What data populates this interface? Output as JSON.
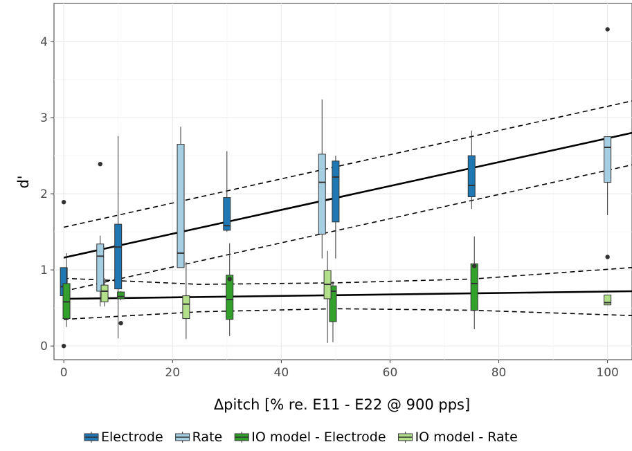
{
  "chart_data": {
    "type": "box",
    "xlabel": "Δpitch [% re. E11 - E22 @ 900 pps]",
    "ylabel": "d'",
    "xlim": [
      -1.8,
      104.5
    ],
    "ylim": [
      -0.18,
      4.5
    ],
    "xticks": [
      0,
      20,
      40,
      60,
      80,
      100
    ],
    "yticks": [
      0,
      1,
      2,
      3,
      4
    ],
    "grid": true,
    "legend_position": "bottom",
    "series": [
      {
        "name": "Electrode",
        "color": "#1f78b4",
        "boxes": [
          {
            "x": 0,
            "whisker_low": 0.66,
            "q1": 0.66,
            "median": 0.78,
            "q3": 1.03,
            "whisker_high": 1.03,
            "outliers": [
              1.89,
              0.0
            ]
          },
          {
            "x": 10,
            "whisker_low": 0.1,
            "q1": 0.75,
            "median": 1.3,
            "q3": 1.6,
            "whisker_high": 2.76,
            "outliers": []
          },
          {
            "x": 30,
            "whisker_low": 1.5,
            "q1": 1.52,
            "median": 1.58,
            "q3": 1.95,
            "whisker_high": 2.56,
            "outliers": []
          },
          {
            "x": 50,
            "whisker_low": 1.15,
            "q1": 1.63,
            "median": 2.22,
            "q3": 2.43,
            "whisker_high": 2.5,
            "outliers": []
          },
          {
            "x": 75,
            "whisker_low": 1.8,
            "q1": 1.96,
            "median": 2.11,
            "q3": 2.5,
            "whisker_high": 2.83,
            "outliers": []
          }
        ]
      },
      {
        "name": "Rate",
        "color": "#a6cee3",
        "boxes": [
          {
            "x": 6.7,
            "whisker_low": 0.52,
            "q1": 0.72,
            "median": 1.18,
            "q3": 1.34,
            "whisker_high": 1.45,
            "outliers": [
              2.39
            ]
          },
          {
            "x": 21.5,
            "whisker_low": 1.03,
            "q1": 1.03,
            "median": 1.22,
            "q3": 2.65,
            "whisker_high": 2.88,
            "outliers": []
          },
          {
            "x": 47.5,
            "whisker_low": 1.15,
            "q1": 1.47,
            "median": 2.15,
            "q3": 2.52,
            "whisker_high": 3.24,
            "outliers": []
          },
          {
            "x": 100,
            "whisker_low": 1.72,
            "q1": 2.15,
            "median": 2.61,
            "q3": 2.75,
            "whisker_high": 2.75,
            "outliers": [
              4.16,
              1.17
            ]
          }
        ]
      },
      {
        "name": "IO model - Electrode",
        "color": "#33a02c",
        "boxes": [
          {
            "x": 0.5,
            "whisker_low": 0.25,
            "q1": 0.36,
            "median": 0.58,
            "q3": 0.82,
            "whisker_high": 1.22,
            "outliers": []
          },
          {
            "x": 10.5,
            "whisker_low": 0.6,
            "q1": 0.62,
            "median": 0.65,
            "q3": 0.71,
            "whisker_high": 0.72,
            "outliers": [
              0.3
            ]
          },
          {
            "x": 30.5,
            "whisker_low": 0.13,
            "q1": 0.35,
            "median": 0.61,
            "q3": 0.93,
            "whisker_high": 1.35,
            "outliers": [
              0.88
            ]
          },
          {
            "x": 49.5,
            "whisker_low": 0.05,
            "q1": 0.32,
            "median": 0.72,
            "q3": 0.79,
            "whisker_high": 0.85,
            "outliers": []
          },
          {
            "x": 75.5,
            "whisker_low": 0.22,
            "q1": 0.47,
            "median": 0.82,
            "q3": 1.08,
            "whisker_high": 1.44,
            "outliers": [
              1.05
            ]
          }
        ]
      },
      {
        "name": "IO model - Rate",
        "color": "#b2df8a",
        "boxes": [
          {
            "x": 7.5,
            "whisker_low": 0.52,
            "q1": 0.58,
            "median": 0.72,
            "q3": 0.8,
            "whisker_high": 0.89,
            "outliers": []
          },
          {
            "x": 22.5,
            "whisker_low": 0.09,
            "q1": 0.36,
            "median": 0.55,
            "q3": 0.66,
            "whisker_high": 1.1,
            "outliers": []
          },
          {
            "x": 48.5,
            "whisker_low": 0.04,
            "q1": 0.62,
            "median": 0.81,
            "q3": 0.99,
            "whisker_high": 1.25,
            "outliers": []
          },
          {
            "x": 100,
            "whisker_low": 0.54,
            "q1": 0.54,
            "median": 0.57,
            "q3": 0.67,
            "whisker_high": 0.67,
            "outliers": []
          }
        ]
      }
    ],
    "fits": [
      {
        "type": "line",
        "style": "solid",
        "x": [
          0,
          104.5
        ],
        "y": [
          1.16,
          2.8
        ]
      },
      {
        "type": "line",
        "style": "dashed",
        "x": [
          0,
          104.5
        ],
        "y": [
          1.56,
          3.22
        ]
      },
      {
        "type": "line",
        "style": "dashed",
        "x": [
          0,
          104.5
        ],
        "y": [
          0.72,
          2.38
        ]
      },
      {
        "type": "line",
        "style": "solid",
        "x": [
          0,
          104.5
        ],
        "y": [
          0.62,
          0.72
        ]
      },
      {
        "type": "line",
        "style": "dashed",
        "x": [
          0,
          25,
          50,
          75,
          104.5
        ],
        "y": [
          0.89,
          0.81,
          0.83,
          0.88,
          1.03
        ]
      },
      {
        "type": "line",
        "style": "dashed",
        "x": [
          0,
          25,
          50,
          75,
          104.5
        ],
        "y": [
          0.35,
          0.45,
          0.49,
          0.47,
          0.4
        ]
      }
    ]
  }
}
